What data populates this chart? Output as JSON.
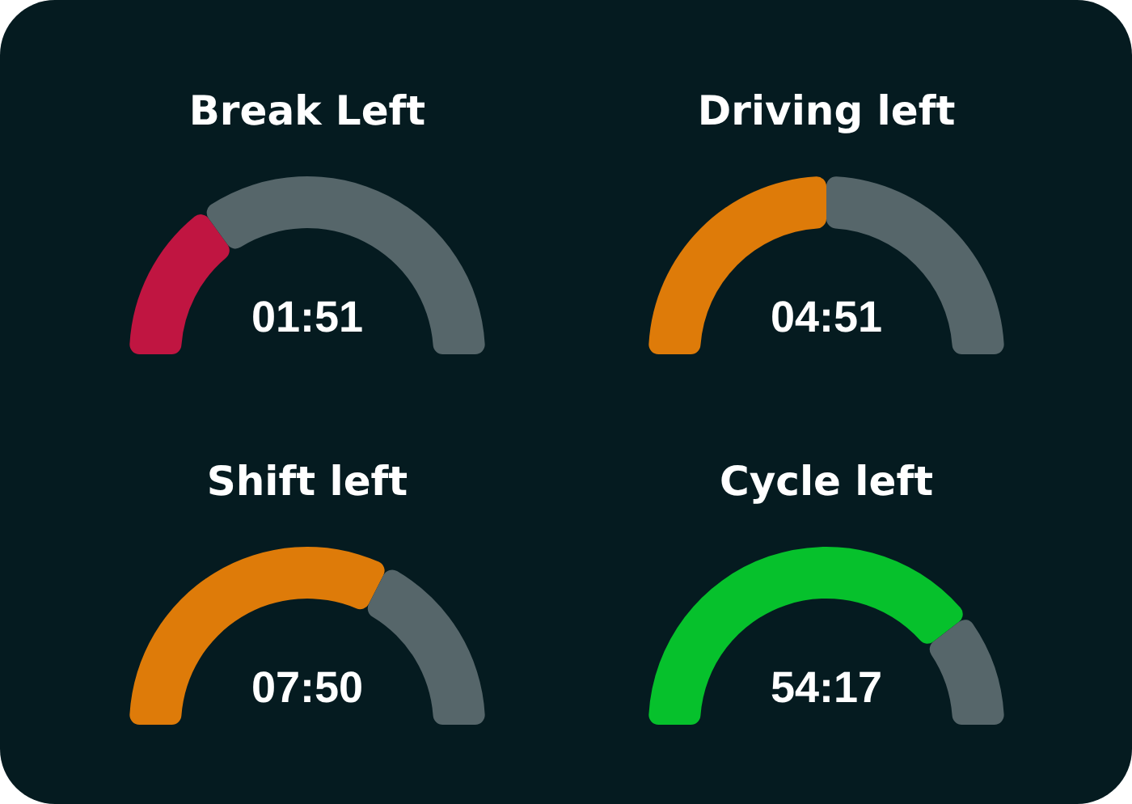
{
  "chart_data": [
    {
      "type": "donut",
      "title": "Break Left",
      "categories": [
        null,
        null
      ],
      "values": [
        30,
        70
      ],
      "colors": [
        "#c01541",
        "#56666a"
      ],
      "annotations": [
        "01:51"
      ]
    },
    {
      "type": "donut",
      "title": "Driving left",
      "categories": [
        null,
        null
      ],
      "values": [
        50,
        50
      ],
      "colors": [
        "#de7b09",
        "#56666a"
      ],
      "annotations": [
        "04:51"
      ]
    },
    {
      "type": "donut",
      "title": "Shift left",
      "categories": [
        null,
        null
      ],
      "values": [
        65,
        35
      ],
      "colors": [
        "#de7b09",
        "#56666a"
      ],
      "annotations": [
        "07:50"
      ]
    },
    {
      "type": "donut",
      "title": "Cycle left",
      "categories": [
        null,
        null
      ],
      "values": [
        79,
        21
      ],
      "colors": [
        "#06c12c",
        "#56666a"
      ],
      "annotations": [
        "54:17"
      ]
    }
  ]
}
